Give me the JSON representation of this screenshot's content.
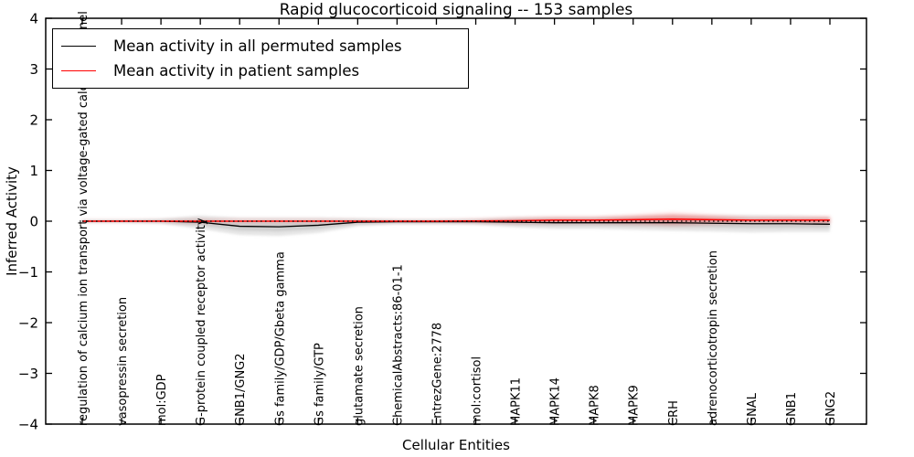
{
  "figure": {
    "title": "Rapid glucocorticoid signaling -- 153 samples"
  },
  "legend": {
    "items": [
      {
        "label": "Mean activity in all permuted samples",
        "color": "#000000"
      },
      {
        "label": "Mean activity in patient samples",
        "color": "#ff0000"
      }
    ]
  },
  "chart_data": {
    "type": "line",
    "title": "Rapid glucocorticoid signaling -- 153 samples",
    "xlabel": "Cellular Entities",
    "ylabel": "Inferred Activity",
    "ylim": [
      -4,
      4
    ],
    "grid": false,
    "legend_position": "upper left",
    "yticks": [
      {
        "value": 4,
        "label": "4"
      },
      {
        "value": 3,
        "label": "3"
      },
      {
        "value": 2,
        "label": "2"
      },
      {
        "value": 1,
        "label": "1"
      },
      {
        "value": 0,
        "label": "0"
      },
      {
        "value": -1,
        "label": "−1"
      },
      {
        "value": -2,
        "label": "−2"
      },
      {
        "value": -3,
        "label": "−3"
      },
      {
        "value": -4,
        "label": "−4"
      }
    ],
    "categories": [
      "regulation of calcium ion transport via voltage-gated calcium channel",
      "vasopressin secretion",
      "mol:GDP",
      "G-protein coupled receptor activity",
      "GNB1/GNG2",
      "Gs family/GDP/Gbeta gamma",
      "Gs family/GTP",
      "glutamate secretion",
      "ChemicalAbstracts:86-01-1",
      "EntrezGene:2778",
      "mol:cortisol",
      "MAPK11",
      "MAPK14",
      "MAPK8",
      "MAPK9",
      "CRH",
      "adrenocorticotropin secretion",
      "GNAL",
      "GNB1",
      "GNG2"
    ],
    "series": [
      {
        "name": "Mean activity in all permuted samples",
        "color": "#000000",
        "style": "solid",
        "band_color": "#aaaaaa",
        "values": [
          0,
          0,
          0,
          -0.02,
          -0.1,
          -0.11,
          -0.08,
          -0.02,
          -0.01,
          -0.01,
          -0.01,
          -0.02,
          -0.03,
          -0.03,
          -0.03,
          -0.03,
          -0.04,
          -0.05,
          -0.05,
          -0.06
        ],
        "band_halfwidth": [
          0.03,
          0.03,
          0.05,
          0.13,
          0.17,
          0.18,
          0.15,
          0.08,
          0.05,
          0.05,
          0.06,
          0.1,
          0.12,
          0.12,
          0.14,
          0.16,
          0.16,
          0.17,
          0.16,
          0.15
        ]
      },
      {
        "name": "Mean activity in patient samples",
        "color": "#ff0000",
        "style": "solid",
        "band_color": "#ff0000",
        "values": [
          0,
          0,
          0,
          0,
          0,
          0,
          0,
          0,
          0,
          0,
          0.005,
          0.01,
          0.02,
          0.02,
          0.03,
          0.04,
          0.03,
          0.02,
          0.02,
          0.02
        ],
        "band_halfwidth": [
          0.01,
          0.01,
          0.01,
          0.02,
          0.02,
          0.02,
          0.02,
          0.01,
          0.01,
          0.01,
          0.02,
          0.04,
          0.05,
          0.05,
          0.08,
          0.12,
          0.08,
          0.04,
          0.05,
          0.06
        ]
      }
    ],
    "reference_line": {
      "value": 0,
      "style": "dotted",
      "color": "#000000"
    }
  }
}
